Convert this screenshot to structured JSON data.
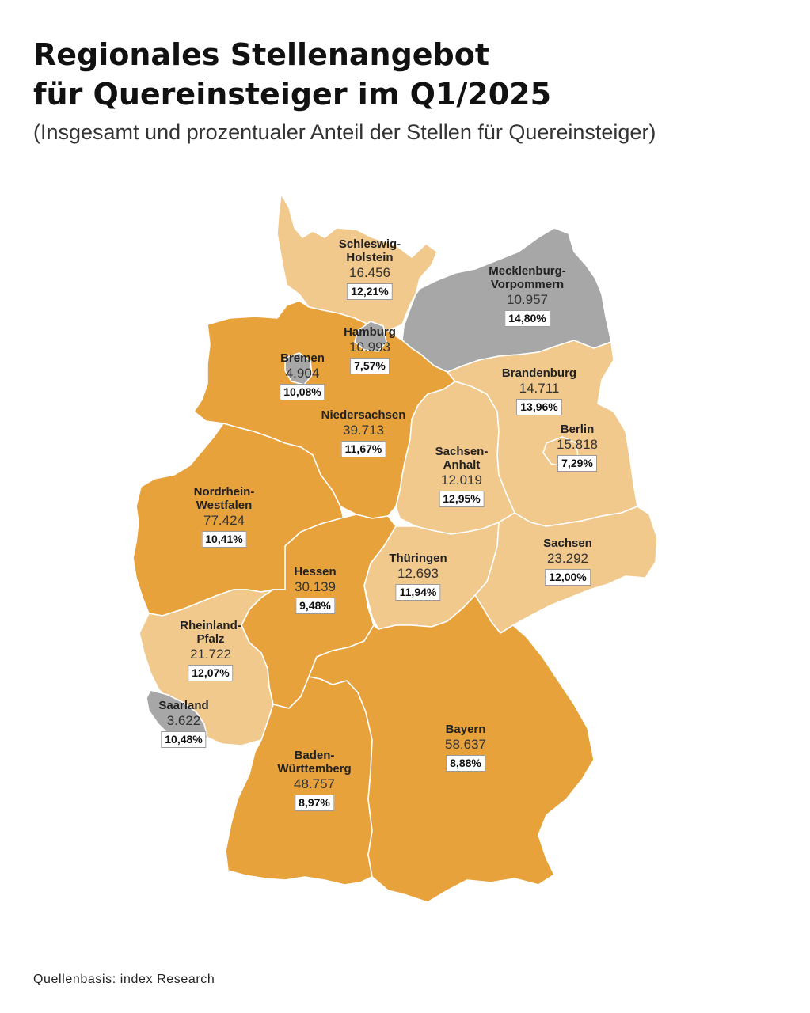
{
  "header": {
    "title_line1": "Regionales Stellenangebot",
    "title_line2": "für Quereinsteiger im Q1/2025",
    "subtitle": "(Insgesamt und prozentualer Anteil der Stellen für Quereinsteiger)"
  },
  "colors": {
    "dark_orange": "#E8A23C",
    "light_orange": "#F2C98C",
    "grey": "#A7A7A7",
    "border": "#ffffff"
  },
  "regions": [
    {
      "id": "schleswig-holstein",
      "name": "Schleswig-\nHolstein",
      "count": "16.456",
      "pct": "12,21%",
      "shade": "light_orange"
    },
    {
      "id": "mecklenburg-vorpommern",
      "name": "Mecklenburg-\nVorpommern",
      "count": "10.957",
      "pct": "14,80%",
      "shade": "grey"
    },
    {
      "id": "hamburg",
      "name": "Hamburg",
      "count": "10.993",
      "pct": "7,57%",
      "shade": "grey"
    },
    {
      "id": "bremen",
      "name": "Bremen",
      "count": "4.904",
      "pct": "10,08%",
      "shade": "grey"
    },
    {
      "id": "brandenburg",
      "name": "Brandenburg",
      "count": "14.711",
      "pct": "13,96%",
      "shade": "light_orange"
    },
    {
      "id": "niedersachsen",
      "name": "Niedersachsen",
      "count": "39.713",
      "pct": "11,67%",
      "shade": "dark_orange"
    },
    {
      "id": "berlin",
      "name": "Berlin",
      "count": "15.818",
      "pct": "7,29%",
      "shade": "light_orange"
    },
    {
      "id": "sachsen-anhalt",
      "name": "Sachsen-\nAnhalt",
      "count": "12.019",
      "pct": "12,95%",
      "shade": "light_orange"
    },
    {
      "id": "nordrhein-westfalen",
      "name": "Nordrhein-\nWestfalen",
      "count": "77.424",
      "pct": "10,41%",
      "shade": "dark_orange"
    },
    {
      "id": "sachsen",
      "name": "Sachsen",
      "count": "23.292",
      "pct": "12,00%",
      "shade": "light_orange"
    },
    {
      "id": "thueringen",
      "name": "Thüringen",
      "count": "12.693",
      "pct": "11,94%",
      "shade": "light_orange"
    },
    {
      "id": "hessen",
      "name": "Hessen",
      "count": "30.139",
      "pct": "9,48%",
      "shade": "dark_orange"
    },
    {
      "id": "rheinland-pfalz",
      "name": "Rheinland-\nPfalz",
      "count": "21.722",
      "pct": "12,07%",
      "shade": "light_orange"
    },
    {
      "id": "saarland",
      "name": "Saarland",
      "count": "3.622",
      "pct": "10,48%",
      "shade": "grey"
    },
    {
      "id": "bayern",
      "name": "Bayern",
      "count": "58.637",
      "pct": "8,88%",
      "shade": "dark_orange"
    },
    {
      "id": "baden-wuerttemberg",
      "name": "Baden-\nWürttemberg",
      "count": "48.757",
      "pct": "8,97%",
      "shade": "dark_orange"
    }
  ],
  "source": "Quellenbasis: index Research"
}
